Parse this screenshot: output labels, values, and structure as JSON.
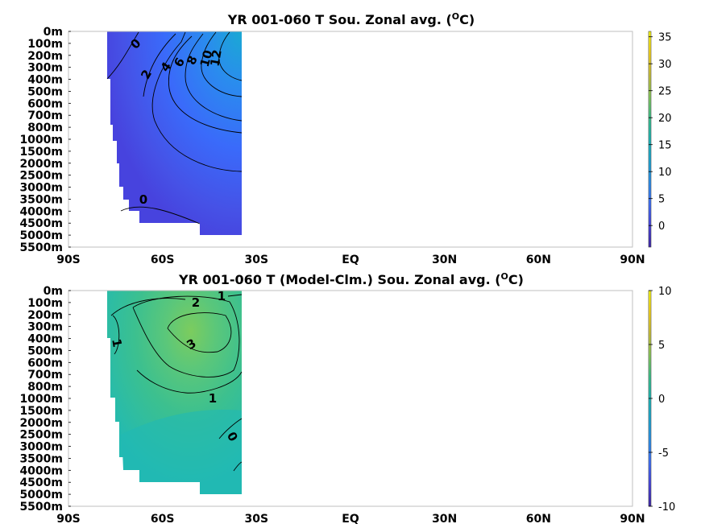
{
  "chart_data": [
    {
      "type": "heatmap",
      "title": "YR 001-060 T Sou. Zonal avg. (",
      "title_super": "O",
      "title_unit": "C)",
      "xtick_labels": [
        "90S",
        "60S",
        "30S",
        "EQ",
        "30N",
        "60N",
        "90N"
      ],
      "xticks": [
        -90,
        -60,
        -30,
        0,
        30,
        60,
        90
      ],
      "xlim": [
        -90,
        90
      ],
      "ytick_labels": [
        "0m",
        "100m",
        "200m",
        "300m",
        "400m",
        "500m",
        "600m",
        "700m",
        "800m",
        "1000m",
        "1500m",
        "2000m",
        "2500m",
        "3000m",
        "3500m",
        "4000m",
        "4500m",
        "5000m",
        "5500m"
      ],
      "colorbar": {
        "ticks": [
          35,
          30,
          25,
          20,
          15,
          10,
          5,
          0
        ],
        "tick_labels": [
          "35",
          "30",
          "25",
          "20",
          "15",
          "10",
          "5",
          "0"
        ],
        "range": [
          -4,
          36
        ]
      },
      "contour_labels": [
        "0",
        "2",
        "4",
        "6",
        "8",
        "10",
        "12",
        "0"
      ],
      "colormap": "parula",
      "field_description": "cold water (~0-2) at high southern latitudes, warming toward 35S surface (~12-14)"
    },
    {
      "type": "heatmap",
      "title": "YR 001-060 T (Model-Clm.) Sou. Zonal avg. (",
      "title_super": "O",
      "title_unit": "C)",
      "xtick_labels": [
        "90S",
        "60S",
        "30S",
        "EQ",
        "30N",
        "60N",
        "90N"
      ],
      "xticks": [
        -90,
        -60,
        -30,
        0,
        30,
        60,
        90
      ],
      "xlim": [
        -90,
        90
      ],
      "ytick_labels": [
        "0m",
        "100m",
        "200m",
        "300m",
        "400m",
        "500m",
        "600m",
        "700m",
        "800m",
        "1000m",
        "1500m",
        "2000m",
        "2500m",
        "3000m",
        "3500m",
        "4000m",
        "4500m",
        "5000m",
        "5500m"
      ],
      "colorbar": {
        "ticks": [
          10,
          5,
          0,
          -5,
          -10
        ],
        "tick_labels": [
          "10",
          "5",
          "0",
          "-5",
          "-10"
        ],
        "range": [
          -10,
          10
        ]
      },
      "contour_labels": [
        "1",
        "2",
        "1",
        "3",
        "1",
        "0"
      ],
      "colormap": "parula"
    }
  ],
  "colors": {
    "cmap": [
      "#3e26a8",
      "#4743e0",
      "#3e6ffc",
      "#2a90ee",
      "#1ba8d6",
      "#1cb9b8",
      "#3bc48d",
      "#8bcb5b",
      "#cdc23a",
      "#f9d61d",
      "#f9fb15"
    ]
  }
}
